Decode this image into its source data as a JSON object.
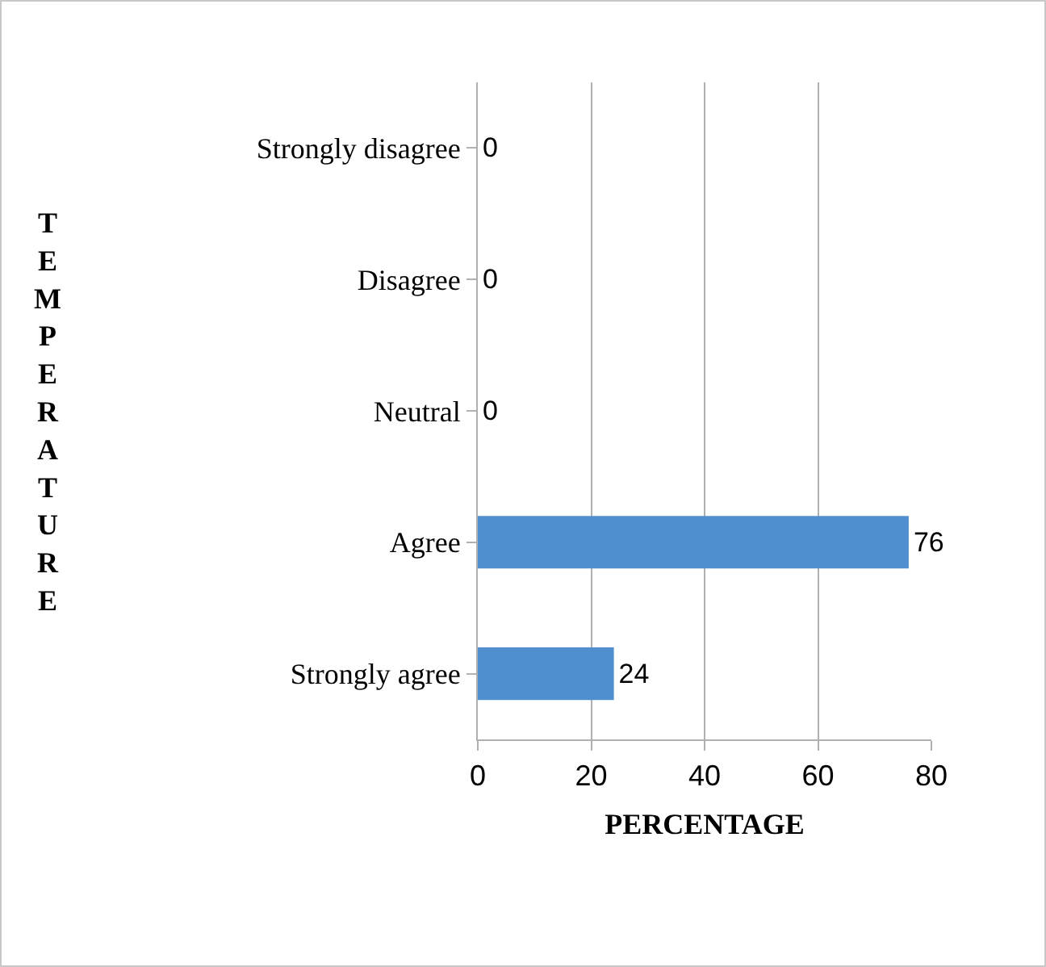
{
  "chart_data": {
    "type": "bar",
    "orientation": "horizontal",
    "categories": [
      "Strongly disagree",
      "Disagree",
      "Neutral",
      "Agree",
      "Strongly agree"
    ],
    "values": [
      0,
      0,
      0,
      76,
      24
    ],
    "color": "#4f8fcf",
    "xlim": [
      0,
      80
    ],
    "xticks": [
      0,
      20,
      40,
      60,
      80
    ],
    "grid": "x",
    "data_labels": true,
    "xlabel": "PERCENTAGE",
    "ylabel": "TEMPERATURE"
  }
}
